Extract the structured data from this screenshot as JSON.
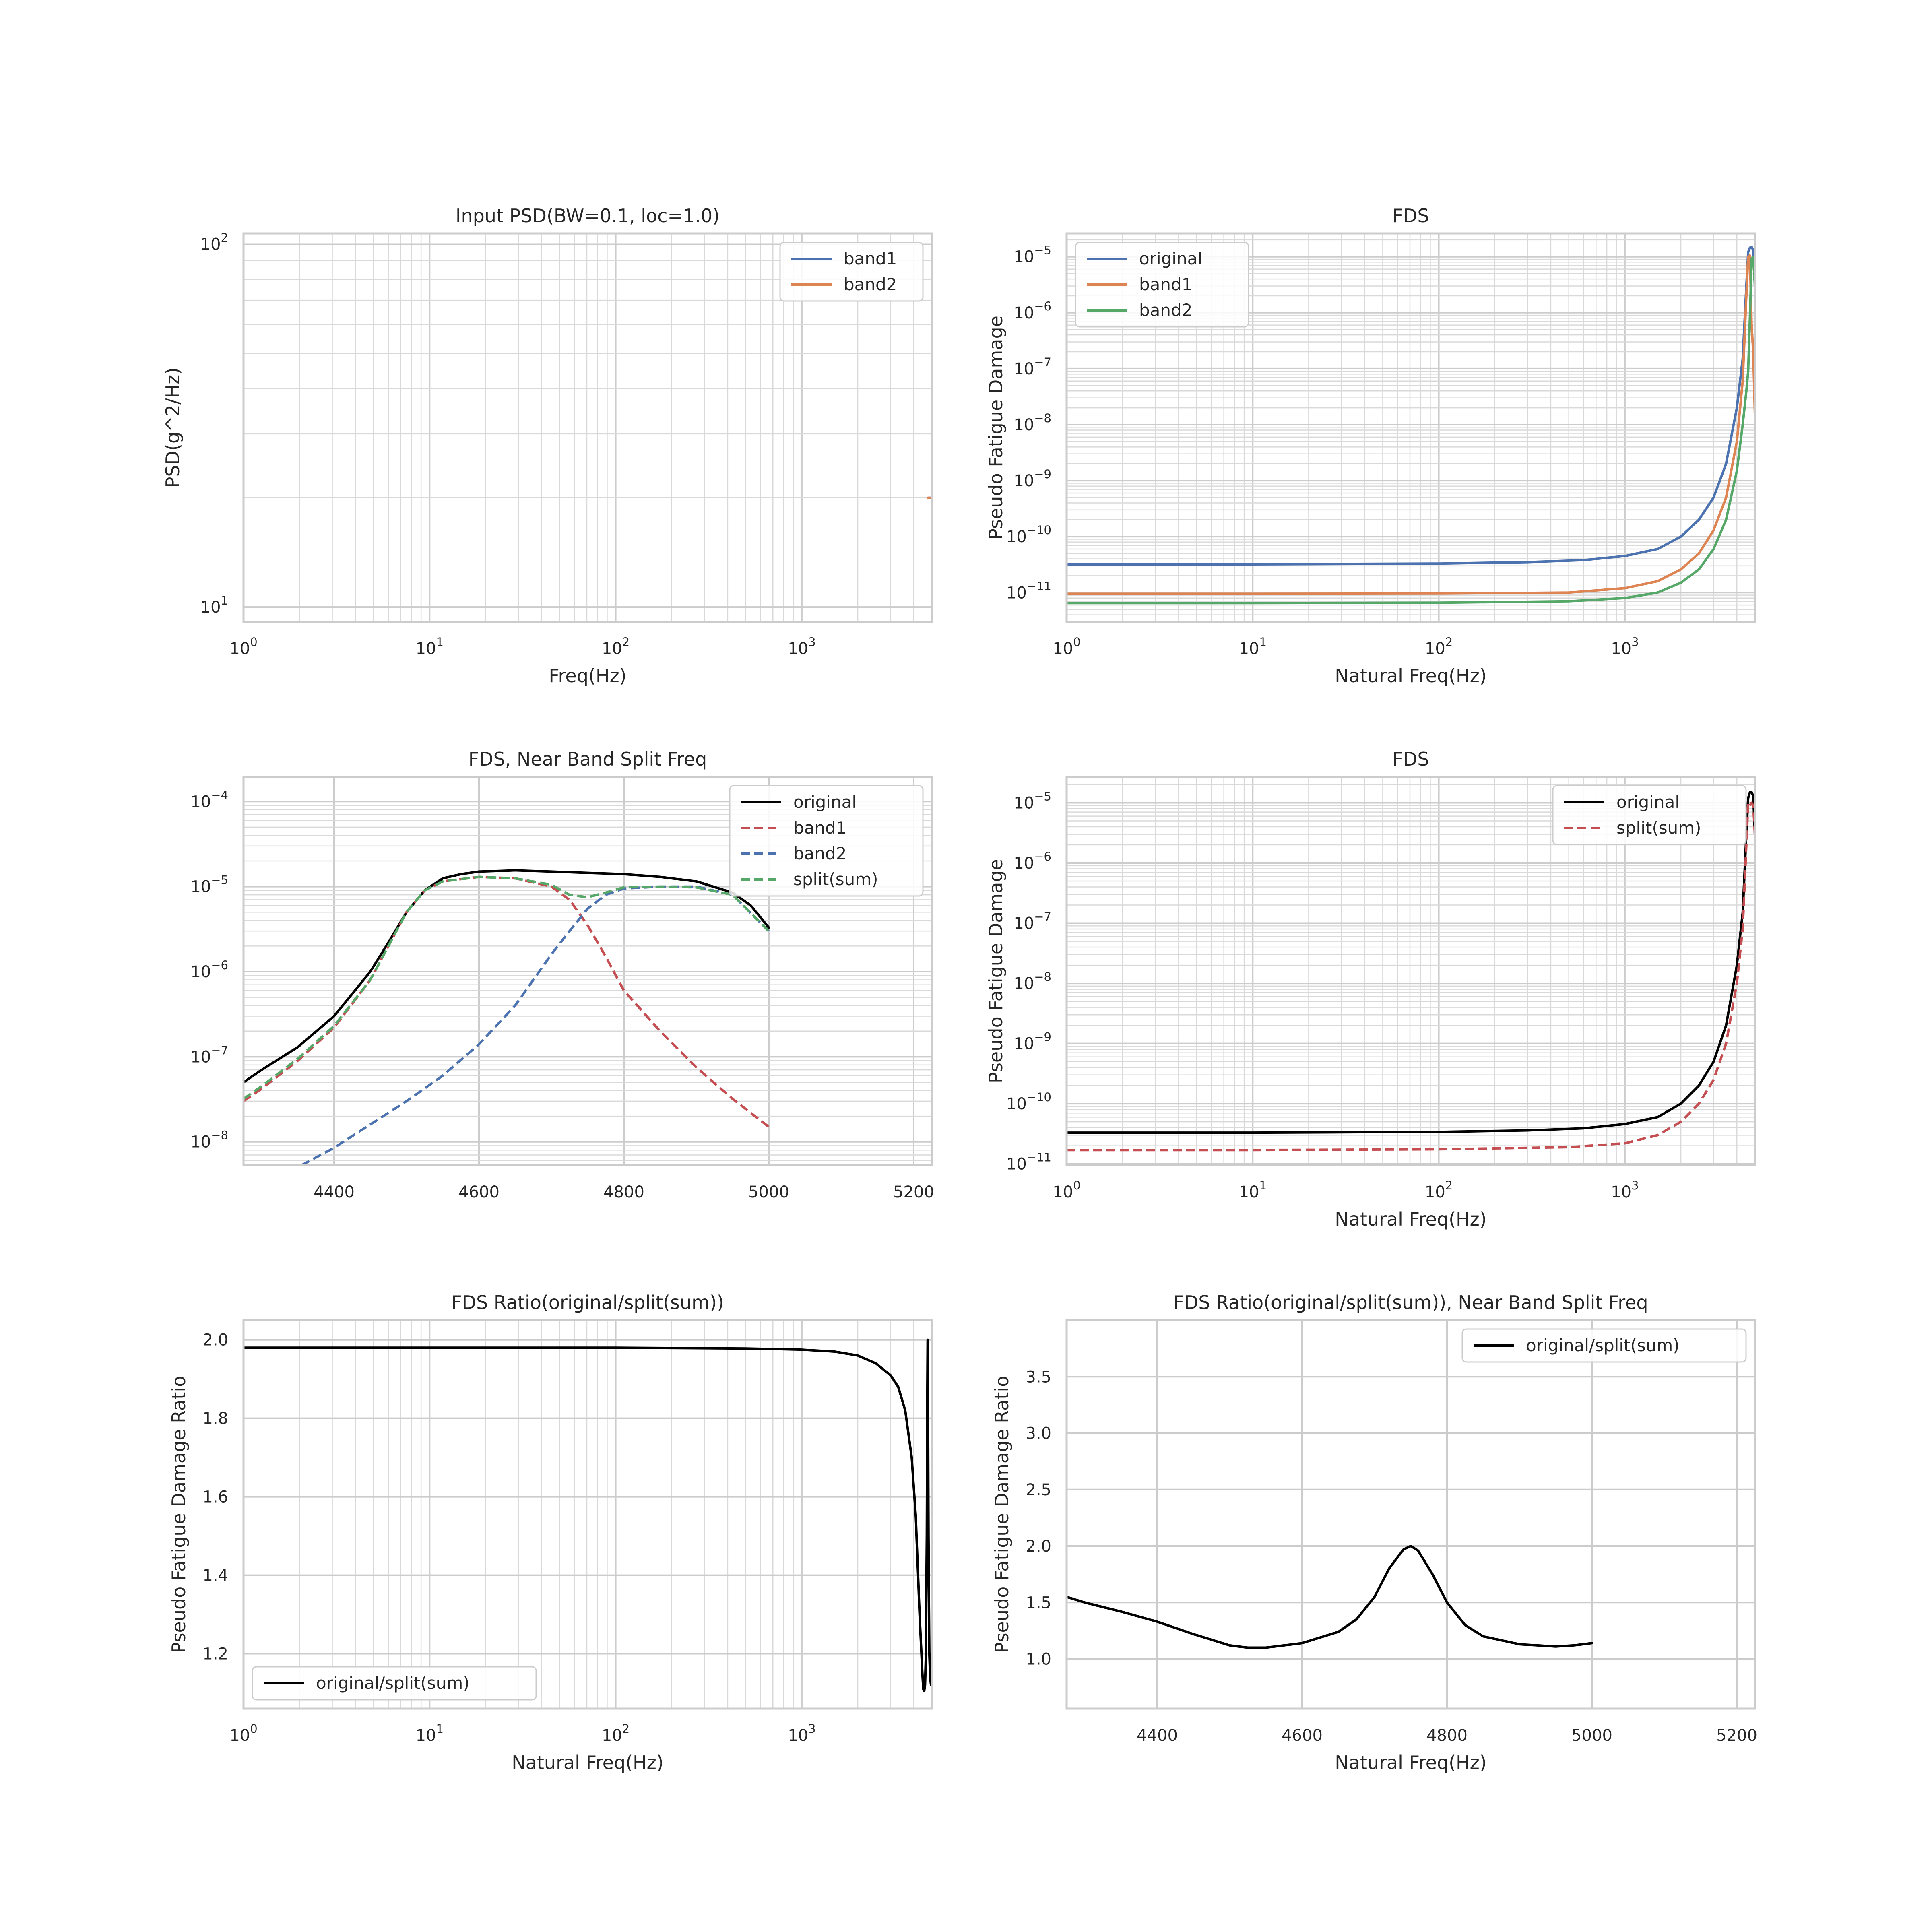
{
  "chart_data": [
    {
      "id": "psd",
      "type": "line",
      "title": "Input PSD(BW=0.1, loc=1.0)",
      "xlabel": "Freq(Hz)",
      "ylabel": "PSD(g^2/Hz)",
      "xscale": "log",
      "yscale": "log",
      "xlim": [
        1,
        5000
      ],
      "ylim": [
        9.1,
        107
      ],
      "xticks": [
        {
          "v": 1,
          "base": "10",
          "exp": "0"
        },
        {
          "v": 10,
          "base": "10",
          "exp": "1"
        },
        {
          "v": 100,
          "base": "10",
          "exp": "2"
        },
        {
          "v": 1000,
          "base": "10",
          "exp": "3"
        }
      ],
      "yticks": [
        {
          "v": 10,
          "base": "10",
          "exp": "1"
        },
        {
          "v": 100,
          "base": "10",
          "exp": "2"
        }
      ],
      "grid": true,
      "legend": "upper-right",
      "series": [
        {
          "name": "band1",
          "color": "#4c72b0",
          "dash": false,
          "x": [
            4780,
            5000
          ],
          "y": [
            20,
            20
          ]
        },
        {
          "name": "band2",
          "color": "#dd8452",
          "dash": false,
          "x": [
            4760,
            4990
          ],
          "y": [
            20,
            20
          ]
        }
      ]
    },
    {
      "id": "fds1",
      "type": "line",
      "title": "FDS",
      "xlabel": "Natural Freq(Hz)",
      "ylabel": "Pseudo Fatigue Damage",
      "xscale": "log",
      "yscale": "log",
      "xlim": [
        1,
        5000
      ],
      "ylim": [
        3e-12,
        2.6e-05
      ],
      "xticks": [
        {
          "v": 1,
          "base": "10",
          "exp": "0"
        },
        {
          "v": 10,
          "base": "10",
          "exp": "1"
        },
        {
          "v": 100,
          "base": "10",
          "exp": "2"
        },
        {
          "v": 1000,
          "base": "10",
          "exp": "3"
        }
      ],
      "yticks": [
        {
          "v": 1e-05,
          "base": "10",
          "exp": "−5"
        },
        {
          "v": 1e-06,
          "base": "10",
          "exp": "−6"
        },
        {
          "v": 1e-07,
          "base": "10",
          "exp": "−7"
        },
        {
          "v": 1e-08,
          "base": "10",
          "exp": "−8"
        },
        {
          "v": 1e-09,
          "base": "10",
          "exp": "−9"
        },
        {
          "v": 1e-10,
          "base": "10",
          "exp": "−10"
        },
        {
          "v": 1e-11,
          "base": "10",
          "exp": "−11"
        }
      ],
      "grid": true,
      "legend": "upper-left",
      "series": [
        {
          "name": "original",
          "color": "#4c72b0",
          "dash": false,
          "x": [
            1,
            10,
            100,
            300,
            600,
            1000,
            1500,
            2000,
            2500,
            3000,
            3500,
            4000,
            4300,
            4500,
            4600,
            4700,
            4800,
            4900,
            5000
          ],
          "y": [
            3.2e-11,
            3.2e-11,
            3.3e-11,
            3.5e-11,
            3.8e-11,
            4.5e-11,
            6e-11,
            1e-10,
            2e-10,
            5e-10,
            2e-09,
            2e-08,
            1.5e-07,
            3e-06,
            1.2e-05,
            1.45e-05,
            1.5e-05,
            1.3e-05,
            3e-06
          ]
        },
        {
          "name": "band1",
          "color": "#dd8452",
          "dash": false,
          "x": [
            1,
            10,
            100,
            500,
            1000,
            1500,
            2000,
            2500,
            3000,
            3500,
            4000,
            4300,
            4500,
            4600,
            4700,
            4800,
            4900,
            5000
          ],
          "y": [
            9.5e-12,
            9.5e-12,
            9.6e-12,
            1e-11,
            1.2e-11,
            1.6e-11,
            2.6e-11,
            5e-11,
            1.3e-10,
            5e-10,
            5e-09,
            6e-08,
            2e-06,
            1e-05,
            1.05e-05,
            6e-07,
            2e-07,
            1.5e-08
          ]
        },
        {
          "name": "band2",
          "color": "#55a868",
          "dash": false,
          "x": [
            1,
            10,
            100,
            500,
            1000,
            1500,
            2000,
            2500,
            3000,
            3500,
            4000,
            4300,
            4500,
            4600,
            4700,
            4800,
            4900,
            5000
          ],
          "y": [
            6.5e-12,
            6.5e-12,
            6.6e-12,
            7e-12,
            8e-12,
            1e-11,
            1.5e-11,
            2.6e-11,
            6e-11,
            2e-10,
            1.5e-09,
            1e-08,
            4e-08,
            9e-08,
            8e-07,
            9e-06,
            1e-05,
            3e-06
          ]
        }
      ]
    },
    {
      "id": "fds_zoom",
      "type": "line",
      "title": "FDS, Near Band Split Freq",
      "xlabel": "",
      "ylabel": "",
      "xscale": "linear",
      "yscale": "log",
      "xlim": [
        4275,
        5225
      ],
      "ylim": [
        5.3e-09,
        0.000195
      ],
      "xticks": [
        {
          "v": 4400,
          "label": "4400"
        },
        {
          "v": 4600,
          "label": "4600"
        },
        {
          "v": 4800,
          "label": "4800"
        },
        {
          "v": 5000,
          "label": "5000"
        },
        {
          "v": 5200,
          "label": "5200"
        }
      ],
      "yticks": [
        {
          "v": 0.0001,
          "base": "10",
          "exp": "−4"
        },
        {
          "v": 1e-05,
          "base": "10",
          "exp": "−5"
        },
        {
          "v": 1e-06,
          "base": "10",
          "exp": "−6"
        },
        {
          "v": 1e-07,
          "base": "10",
          "exp": "−7"
        },
        {
          "v": 1e-08,
          "base": "10",
          "exp": "−8"
        }
      ],
      "grid": true,
      "legend": "upper-right",
      "series": [
        {
          "name": "original",
          "color": "#000000",
          "dash": false,
          "x": [
            4275,
            4300,
            4350,
            4400,
            4450,
            4475,
            4500,
            4525,
            4550,
            4575,
            4600,
            4650,
            4700,
            4750,
            4800,
            4850,
            4900,
            4950,
            4975,
            5000
          ],
          "y": [
            5e-08,
            7e-08,
            1.3e-07,
            3e-07,
            1e-06,
            2.2e-06,
            5e-06,
            9e-06,
            1.25e-05,
            1.4e-05,
            1.5e-05,
            1.55e-05,
            1.5e-05,
            1.45e-05,
            1.4e-05,
            1.3e-05,
            1.15e-05,
            8.5e-06,
            6e-06,
            3.3e-06
          ]
        },
        {
          "name": "band1",
          "color": "#c44e52",
          "dash": true,
          "x": [
            4275,
            4300,
            4350,
            4400,
            4450,
            4500,
            4525,
            4550,
            4600,
            4650,
            4700,
            4725,
            4750,
            4775,
            4800,
            4850,
            4900,
            4950,
            5000
          ],
          "y": [
            3e-08,
            4.2e-08,
            9e-08,
            2.2e-07,
            8e-07,
            5e-06,
            9e-06,
            1.15e-05,
            1.3e-05,
            1.25e-05,
            1e-05,
            7e-06,
            3.5e-06,
            1.5e-06,
            6e-07,
            2e-07,
            7.5e-08,
            3.2e-08,
            1.5e-08
          ]
        },
        {
          "name": "band2",
          "color": "#4c72b0",
          "dash": true,
          "x": [
            4355,
            4400,
            4450,
            4500,
            4550,
            4600,
            4650,
            4700,
            4725,
            4750,
            4775,
            4800,
            4850,
            4900,
            4950,
            5000
          ],
          "y": [
            5.3e-09,
            8.5e-09,
            1.6e-08,
            3e-08,
            6e-08,
            1.4e-07,
            4e-07,
            1.6e-06,
            3e-06,
            5.5e-06,
            8e-06,
            9.5e-06,
            1e-05,
            1e-05,
            8e-06,
            3e-06
          ]
        },
        {
          "name": "split(sum)",
          "color": "#55a868",
          "dash": true,
          "x": [
            4275,
            4300,
            4350,
            4400,
            4450,
            4500,
            4525,
            4550,
            4600,
            4650,
            4700,
            4725,
            4750,
            4775,
            4800,
            4850,
            4900,
            4950,
            5000
          ],
          "y": [
            3.2e-08,
            4.5e-08,
            9.5e-08,
            2.3e-07,
            8e-07,
            5e-06,
            9e-06,
            1.15e-05,
            1.3e-05,
            1.25e-05,
            1.05e-05,
            8e-06,
            7.5e-06,
            8.5e-06,
            9.8e-06,
            1e-05,
            9.8e-06,
            8e-06,
            3e-06
          ]
        }
      ]
    },
    {
      "id": "fds2",
      "type": "line",
      "title": "FDS",
      "xlabel": "Natural Freq(Hz)",
      "ylabel": "Pseudo Fatigue Damage",
      "xscale": "log",
      "yscale": "log",
      "xlim": [
        1,
        5000
      ],
      "ylim": [
        9.5e-12,
        2.7e-05
      ],
      "xticks": [
        {
          "v": 1,
          "base": "10",
          "exp": "0"
        },
        {
          "v": 10,
          "base": "10",
          "exp": "1"
        },
        {
          "v": 100,
          "base": "10",
          "exp": "2"
        },
        {
          "v": 1000,
          "base": "10",
          "exp": "3"
        }
      ],
      "yticks": [
        {
          "v": 1e-05,
          "base": "10",
          "exp": "−5"
        },
        {
          "v": 1e-06,
          "base": "10",
          "exp": "−6"
        },
        {
          "v": 1e-07,
          "base": "10",
          "exp": "−7"
        },
        {
          "v": 1e-08,
          "base": "10",
          "exp": "−8"
        },
        {
          "v": 1e-09,
          "base": "10",
          "exp": "−9"
        },
        {
          "v": 1e-10,
          "base": "10",
          "exp": "−10"
        },
        {
          "v": 1e-11,
          "base": "10",
          "exp": "−11"
        }
      ],
      "grid": true,
      "legend": "upper-right",
      "series": [
        {
          "name": "original",
          "color": "#000000",
          "dash": false,
          "x": [
            1,
            10,
            100,
            300,
            600,
            1000,
            1500,
            2000,
            2500,
            3000,
            3500,
            4000,
            4300,
            4500,
            4600,
            4700,
            4800,
            4900,
            5000
          ],
          "y": [
            3.3e-11,
            3.3e-11,
            3.4e-11,
            3.6e-11,
            3.9e-11,
            4.6e-11,
            6e-11,
            1e-10,
            2e-10,
            5e-10,
            2e-09,
            2e-08,
            1.5e-07,
            3e-06,
            1.2e-05,
            1.5e-05,
            1.5e-05,
            1.3e-05,
            3e-06
          ]
        },
        {
          "name": "split(sum)",
          "color": "#c44e52",
          "dash": true,
          "x": [
            1,
            10,
            100,
            500,
            1000,
            1500,
            2000,
            2500,
            3000,
            3500,
            4000,
            4300,
            4500,
            4600,
            4700,
            4800,
            4900,
            5000
          ],
          "y": [
            1.7e-11,
            1.7e-11,
            1.75e-11,
            1.9e-11,
            2.2e-11,
            3e-11,
            5e-11,
            1e-10,
            2.5e-10,
            1e-09,
            1e-08,
            8e-08,
            2e-06,
            1e-05,
            9e-06,
            1e-05,
            9e-06,
            3e-06
          ]
        }
      ]
    },
    {
      "id": "ratio",
      "type": "line",
      "title": "FDS Ratio(original/split(sum))",
      "xlabel": "Natural Freq(Hz)",
      "ylabel": "Pseudo Fatigue Damage Ratio",
      "xscale": "log",
      "yscale": "linear",
      "xlim": [
        1,
        5000
      ],
      "ylim": [
        1.06,
        2.05
      ],
      "xticks": [
        {
          "v": 1,
          "base": "10",
          "exp": "0"
        },
        {
          "v": 10,
          "base": "10",
          "exp": "1"
        },
        {
          "v": 100,
          "base": "10",
          "exp": "2"
        },
        {
          "v": 1000,
          "base": "10",
          "exp": "3"
        }
      ],
      "yticks": [
        {
          "v": 1.2,
          "label": "1.2"
        },
        {
          "v": 1.4,
          "label": "1.4"
        },
        {
          "v": 1.6,
          "label": "1.6"
        },
        {
          "v": 1.8,
          "label": "1.8"
        },
        {
          "v": 2.0,
          "label": "2.0"
        }
      ],
      "grid": true,
      "legend": "lower-left",
      "series": [
        {
          "name": "original/split(sum)",
          "color": "#000000",
          "dash": false,
          "x": [
            1,
            10,
            100,
            500,
            1000,
            1500,
            2000,
            2500,
            3000,
            3300,
            3600,
            3900,
            4100,
            4300,
            4400,
            4450,
            4500,
            4550,
            4600,
            4650,
            4700,
            4725,
            4750,
            4775,
            4800,
            4850,
            4900,
            4950,
            5000
          ],
          "y": [
            1.98,
            1.98,
            1.98,
            1.978,
            1.975,
            1.97,
            1.96,
            1.94,
            1.91,
            1.88,
            1.82,
            1.7,
            1.55,
            1.3,
            1.2,
            1.15,
            1.11,
            1.105,
            1.12,
            1.2,
            1.5,
            1.8,
            2.0,
            1.8,
            1.5,
            1.2,
            1.14,
            1.12,
            1.13
          ]
        }
      ]
    },
    {
      "id": "ratio_zoom",
      "type": "line",
      "title": "FDS Ratio(original/split(sum)), Near Band Split Freq",
      "xlabel": "Natural Freq(Hz)",
      "ylabel": "Pseudo Fatigue Damage Ratio",
      "xscale": "linear",
      "yscale": "linear",
      "xlim": [
        4275,
        5225
      ],
      "ylim": [
        0.56,
        4.0
      ],
      "xticks": [
        {
          "v": 4400,
          "label": "4400"
        },
        {
          "v": 4600,
          "label": "4600"
        },
        {
          "v": 4800,
          "label": "4800"
        },
        {
          "v": 5000,
          "label": "5000"
        },
        {
          "v": 5200,
          "label": "5200"
        }
      ],
      "yticks": [
        {
          "v": 1.0,
          "label": "1.0"
        },
        {
          "v": 1.5,
          "label": "1.5"
        },
        {
          "v": 2.0,
          "label": "2.0"
        },
        {
          "v": 2.5,
          "label": "2.5"
        },
        {
          "v": 3.0,
          "label": "3.0"
        },
        {
          "v": 3.5,
          "label": "3.5"
        }
      ],
      "grid": true,
      "legend": "upper-right",
      "series": [
        {
          "name": "original/split(sum)",
          "color": "#000000",
          "dash": false,
          "x": [
            4275,
            4300,
            4350,
            4400,
            4450,
            4500,
            4525,
            4550,
            4600,
            4650,
            4675,
            4700,
            4720,
            4740,
            4750,
            4760,
            4780,
            4800,
            4825,
            4850,
            4900,
            4950,
            4975,
            5000
          ],
          "y": [
            1.55,
            1.5,
            1.42,
            1.33,
            1.22,
            1.12,
            1.1,
            1.1,
            1.14,
            1.24,
            1.35,
            1.55,
            1.8,
            1.97,
            2.0,
            1.96,
            1.75,
            1.5,
            1.3,
            1.2,
            1.13,
            1.11,
            1.12,
            1.14
          ]
        }
      ]
    }
  ]
}
